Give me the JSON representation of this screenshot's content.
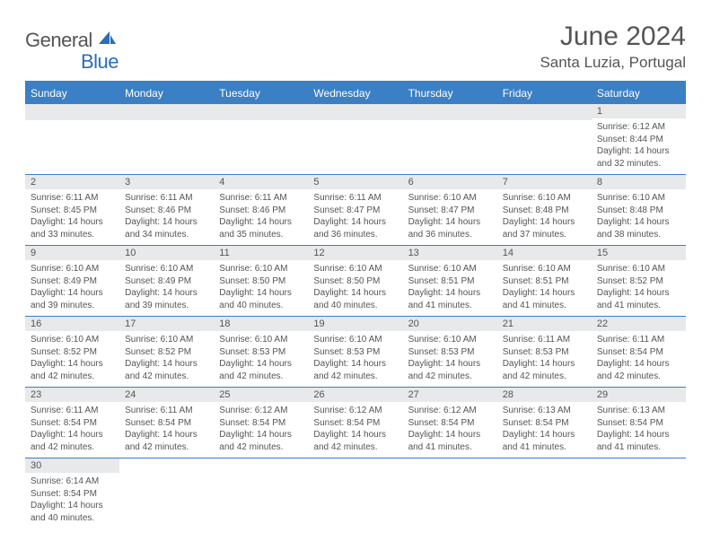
{
  "logo": {
    "part1": "General",
    "part2": "Blue"
  },
  "title": "June 2024",
  "location": "Santa Luzia, Portugal",
  "colors": {
    "header_bg": "#3b7fc4",
    "header_text": "#ffffff",
    "daynum_bg": "#e7e9ea",
    "text": "#555555",
    "rule": "#3b7fc4"
  },
  "day_names": [
    "Sunday",
    "Monday",
    "Tuesday",
    "Wednesday",
    "Thursday",
    "Friday",
    "Saturday"
  ],
  "weeks": [
    [
      {
        "blank": true
      },
      {
        "blank": true
      },
      {
        "blank": true
      },
      {
        "blank": true
      },
      {
        "blank": true
      },
      {
        "blank": true
      },
      {
        "n": "1",
        "sr": "6:12 AM",
        "ss": "8:44 PM",
        "dl": "14 hours and 32 minutes."
      }
    ],
    [
      {
        "n": "2",
        "sr": "6:11 AM",
        "ss": "8:45 PM",
        "dl": "14 hours and 33 minutes."
      },
      {
        "n": "3",
        "sr": "6:11 AM",
        "ss": "8:46 PM",
        "dl": "14 hours and 34 minutes."
      },
      {
        "n": "4",
        "sr": "6:11 AM",
        "ss": "8:46 PM",
        "dl": "14 hours and 35 minutes."
      },
      {
        "n": "5",
        "sr": "6:11 AM",
        "ss": "8:47 PM",
        "dl": "14 hours and 36 minutes."
      },
      {
        "n": "6",
        "sr": "6:10 AM",
        "ss": "8:47 PM",
        "dl": "14 hours and 36 minutes."
      },
      {
        "n": "7",
        "sr": "6:10 AM",
        "ss": "8:48 PM",
        "dl": "14 hours and 37 minutes."
      },
      {
        "n": "8",
        "sr": "6:10 AM",
        "ss": "8:48 PM",
        "dl": "14 hours and 38 minutes."
      }
    ],
    [
      {
        "n": "9",
        "sr": "6:10 AM",
        "ss": "8:49 PM",
        "dl": "14 hours and 39 minutes."
      },
      {
        "n": "10",
        "sr": "6:10 AM",
        "ss": "8:49 PM",
        "dl": "14 hours and 39 minutes."
      },
      {
        "n": "11",
        "sr": "6:10 AM",
        "ss": "8:50 PM",
        "dl": "14 hours and 40 minutes."
      },
      {
        "n": "12",
        "sr": "6:10 AM",
        "ss": "8:50 PM",
        "dl": "14 hours and 40 minutes."
      },
      {
        "n": "13",
        "sr": "6:10 AM",
        "ss": "8:51 PM",
        "dl": "14 hours and 41 minutes."
      },
      {
        "n": "14",
        "sr": "6:10 AM",
        "ss": "8:51 PM",
        "dl": "14 hours and 41 minutes."
      },
      {
        "n": "15",
        "sr": "6:10 AM",
        "ss": "8:52 PM",
        "dl": "14 hours and 41 minutes."
      }
    ],
    [
      {
        "n": "16",
        "sr": "6:10 AM",
        "ss": "8:52 PM",
        "dl": "14 hours and 42 minutes."
      },
      {
        "n": "17",
        "sr": "6:10 AM",
        "ss": "8:52 PM",
        "dl": "14 hours and 42 minutes."
      },
      {
        "n": "18",
        "sr": "6:10 AM",
        "ss": "8:53 PM",
        "dl": "14 hours and 42 minutes."
      },
      {
        "n": "19",
        "sr": "6:10 AM",
        "ss": "8:53 PM",
        "dl": "14 hours and 42 minutes."
      },
      {
        "n": "20",
        "sr": "6:10 AM",
        "ss": "8:53 PM",
        "dl": "14 hours and 42 minutes."
      },
      {
        "n": "21",
        "sr": "6:11 AM",
        "ss": "8:53 PM",
        "dl": "14 hours and 42 minutes."
      },
      {
        "n": "22",
        "sr": "6:11 AM",
        "ss": "8:54 PM",
        "dl": "14 hours and 42 minutes."
      }
    ],
    [
      {
        "n": "23",
        "sr": "6:11 AM",
        "ss": "8:54 PM",
        "dl": "14 hours and 42 minutes."
      },
      {
        "n": "24",
        "sr": "6:11 AM",
        "ss": "8:54 PM",
        "dl": "14 hours and 42 minutes."
      },
      {
        "n": "25",
        "sr": "6:12 AM",
        "ss": "8:54 PM",
        "dl": "14 hours and 42 minutes."
      },
      {
        "n": "26",
        "sr": "6:12 AM",
        "ss": "8:54 PM",
        "dl": "14 hours and 42 minutes."
      },
      {
        "n": "27",
        "sr": "6:12 AM",
        "ss": "8:54 PM",
        "dl": "14 hours and 41 minutes."
      },
      {
        "n": "28",
        "sr": "6:13 AM",
        "ss": "8:54 PM",
        "dl": "14 hours and 41 minutes."
      },
      {
        "n": "29",
        "sr": "6:13 AM",
        "ss": "8:54 PM",
        "dl": "14 hours and 41 minutes."
      }
    ],
    [
      {
        "n": "30",
        "sr": "6:14 AM",
        "ss": "8:54 PM",
        "dl": "14 hours and 40 minutes."
      },
      {
        "blank": true
      },
      {
        "blank": true
      },
      {
        "blank": true
      },
      {
        "blank": true
      },
      {
        "blank": true
      },
      {
        "blank": true
      }
    ]
  ],
  "labels": {
    "sunrise": "Sunrise:",
    "sunset": "Sunset:",
    "daylight": "Daylight:"
  }
}
